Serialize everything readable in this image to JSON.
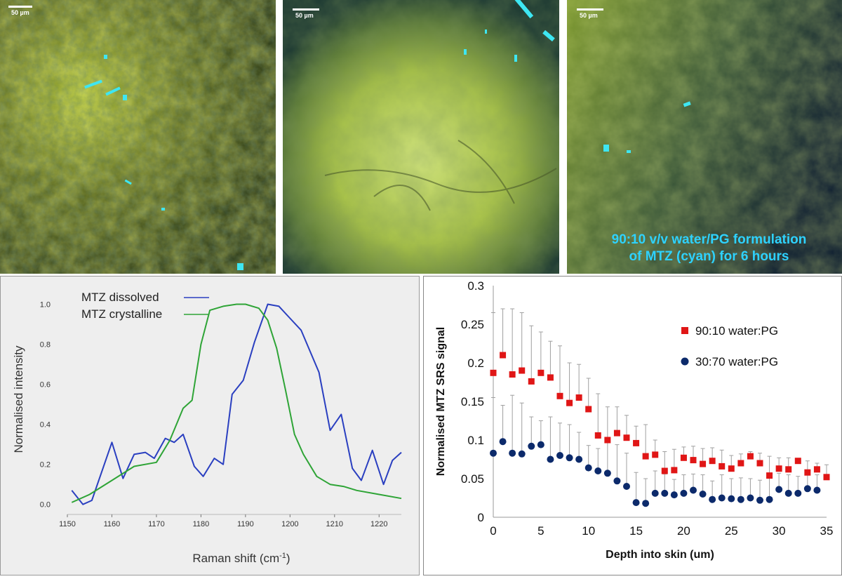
{
  "micrographs": [
    {
      "scale_label": "50 µm"
    },
    {
      "scale_label": "50 µm"
    },
    {
      "scale_label": "50 µm",
      "caption_line1": "90:10 v/v water/PG formulation",
      "caption_line2": "of MTZ (cyan) for 6 hours"
    }
  ],
  "colors": {
    "dissolved": "#2a3fc0",
    "crystalline": "#2ea436",
    "series_9010": "#e01616",
    "series_3070": "#0c2a6b",
    "cyan": "#2ed2ff"
  },
  "chart_data": [
    {
      "type": "line",
      "xlabel": "Raman shift (cm",
      "xlabel_sup": "-1",
      "xlabel_end": ")",
      "ylabel": "Normalised intensity",
      "xlim": [
        1150,
        1225
      ],
      "ylim": [
        -0.05,
        1.1
      ],
      "x_ticks": [
        1150,
        1160,
        1170,
        1180,
        1190,
        1200,
        1210,
        1220
      ],
      "y_ticks": [
        "0.0",
        "0.2",
        "0.4",
        "0.6",
        "0.8",
        "1.0"
      ],
      "legend_position": "top-left",
      "series": [
        {
          "name": "MTZ dissolved",
          "color": "#2a3fc0",
          "x": [
            1151,
            1153.5,
            1155.5,
            1160,
            1162.5,
            1165,
            1167.5,
            1169.5,
            1172,
            1174,
            1176,
            1178.5,
            1180.5,
            1183,
            1185,
            1187,
            1189.5,
            1192,
            1195,
            1197.5,
            1200,
            1202.5,
            1206.5,
            1209,
            1211.5,
            1214,
            1216,
            1218.5,
            1221,
            1223,
            1225
          ],
          "y": [
            0.07,
            0.0,
            0.02,
            0.31,
            0.13,
            0.25,
            0.26,
            0.23,
            0.33,
            0.31,
            0.35,
            0.19,
            0.14,
            0.23,
            0.2,
            0.55,
            0.62,
            0.81,
            1.0,
            0.99,
            0.93,
            0.87,
            0.66,
            0.37,
            0.45,
            0.18,
            0.12,
            0.27,
            0.1,
            0.22,
            0.26
          ]
        },
        {
          "name": "MTZ crystalline",
          "color": "#2ea436",
          "x": [
            1151,
            1155,
            1160,
            1165,
            1170,
            1173,
            1176,
            1178,
            1180,
            1182,
            1185,
            1188,
            1190,
            1193,
            1195,
            1197,
            1199,
            1201,
            1203,
            1206,
            1209,
            1212,
            1215,
            1220,
            1225
          ],
          "y": [
            0.01,
            0.05,
            0.12,
            0.19,
            0.21,
            0.32,
            0.48,
            0.52,
            0.8,
            0.97,
            0.99,
            1.0,
            1.0,
            0.98,
            0.92,
            0.78,
            0.57,
            0.35,
            0.25,
            0.14,
            0.1,
            0.09,
            0.07,
            0.05,
            0.03
          ]
        }
      ]
    },
    {
      "type": "scatter",
      "xlabel": "Depth into skin (um)",
      "ylabel": "Normalised MTZ SRS signal",
      "xlim": [
        0,
        35
      ],
      "ylim": [
        0,
        0.3
      ],
      "x_ticks": [
        "0",
        "5",
        "10",
        "15",
        "20",
        "25",
        "30",
        "35"
      ],
      "y_ticks": [
        "0",
        "0.05",
        "0.1",
        "0.15",
        "0.2",
        "0.25",
        "0.3"
      ],
      "legend_position": "top-right",
      "error_bars": "one-sided upward",
      "series": [
        {
          "name": "90:10 water:PG",
          "marker": "square",
          "color": "#e01616",
          "x": [
            0,
            1,
            2,
            3,
            4,
            5,
            6,
            7,
            8,
            9,
            10,
            11,
            12,
            13,
            14,
            15,
            16,
            17,
            18,
            19,
            20,
            21,
            22,
            23,
            24,
            25,
            26,
            27,
            28,
            29,
            30,
            31,
            32,
            33,
            34,
            35
          ],
          "y": [
            0.187,
            0.21,
            0.185,
            0.19,
            0.176,
            0.187,
            0.181,
            0.157,
            0.148,
            0.155,
            0.14,
            0.106,
            0.1,
            0.109,
            0.103,
            0.096,
            0.079,
            0.081,
            0.06,
            0.061,
            0.077,
            0.074,
            0.069,
            0.073,
            0.066,
            0.063,
            0.07,
            0.079,
            0.07,
            0.054,
            0.063,
            0.062,
            0.073,
            0.058,
            0.062,
            0.052
          ],
          "error_top": [
            0.265,
            0.27,
            0.27,
            0.265,
            0.248,
            0.24,
            0.228,
            0.222,
            0.2,
            0.198,
            0.18,
            0.16,
            0.143,
            0.143,
            0.132,
            0.118,
            0.12,
            0.1,
            0.085,
            0.088,
            0.091,
            0.092,
            0.089,
            0.09,
            0.087,
            0.08,
            0.082,
            0.085,
            0.083,
            0.079,
            0.077,
            0.077,
            0.073,
            0.073,
            0.07,
            0.068
          ]
        },
        {
          "name": "30:70 water:PG",
          "marker": "circle",
          "color": "#0c2a6b",
          "x": [
            0,
            1,
            2,
            3,
            4,
            5,
            6,
            7,
            8,
            9,
            10,
            11,
            12,
            13,
            14,
            15,
            16,
            17,
            18,
            19,
            20,
            21,
            22,
            23,
            24,
            25,
            26,
            27,
            28,
            29,
            30,
            31,
            32,
            33,
            34
          ],
          "y": [
            0.083,
            0.098,
            0.083,
            0.082,
            0.092,
            0.094,
            0.075,
            0.08,
            0.077,
            0.075,
            0.064,
            0.06,
            0.057,
            0.047,
            0.04,
            0.019,
            0.018,
            0.031,
            0.031,
            0.029,
            0.031,
            0.035,
            0.03,
            0.023,
            0.025,
            0.024,
            0.023,
            0.025,
            0.022,
            0.023,
            0.036,
            0.031,
            0.031,
            0.037,
            0.035
          ],
          "error_top": [
            0.155,
            0.145,
            0.158,
            0.148,
            0.13,
            0.125,
            0.13,
            0.122,
            0.12,
            0.11,
            0.093,
            0.089,
            0.098,
            0.094,
            0.083,
            0.058,
            0.05,
            0.06,
            0.056,
            0.049,
            0.055,
            0.056,
            0.055,
            0.047,
            0.055,
            0.05,
            0.051,
            0.05,
            0.048,
            0.051,
            0.057,
            0.055,
            0.053,
            0.057,
            0.055
          ]
        }
      ]
    }
  ]
}
